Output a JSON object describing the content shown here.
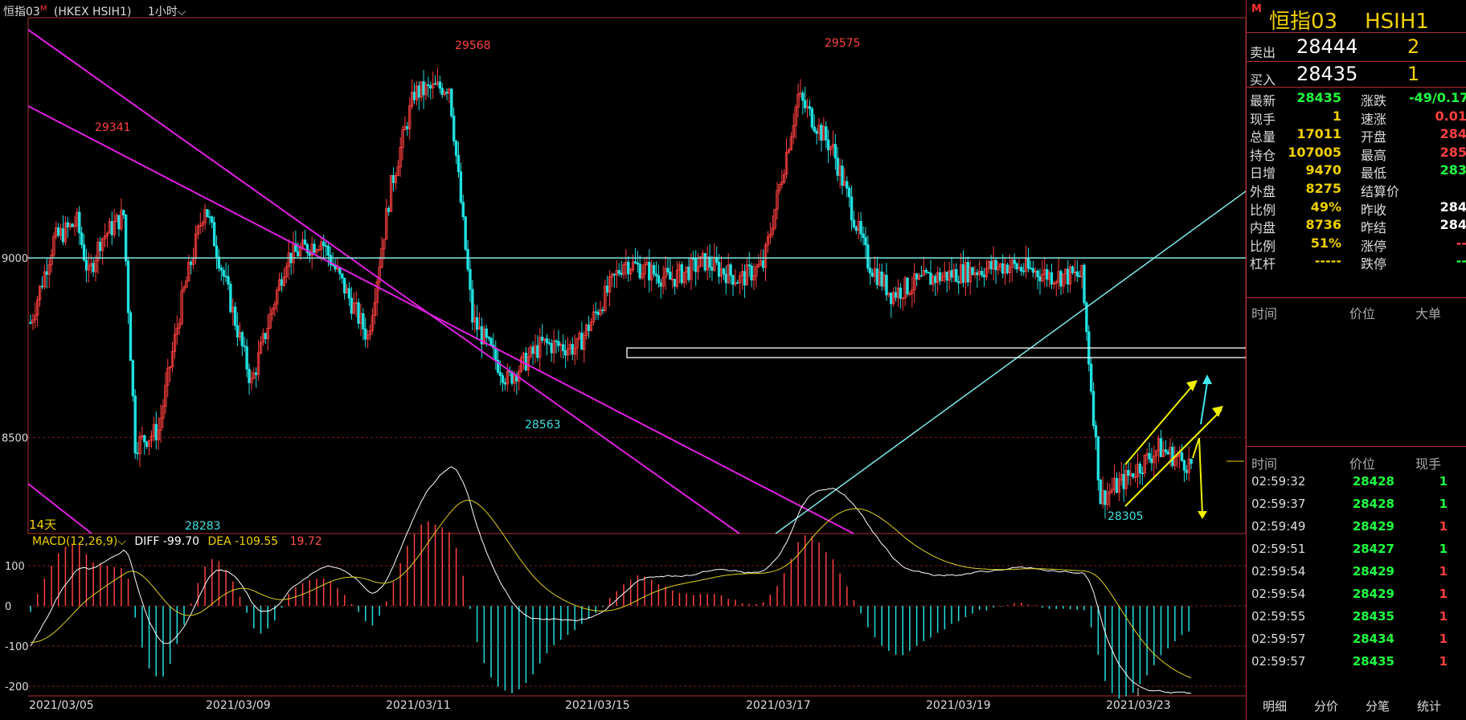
{
  "header": {
    "symbol": "恒指03",
    "badge": "M",
    "code": "(HKEX HSIH1)",
    "period": "1小时",
    "chevron_icon": "chevron-down-icon"
  },
  "main_chart": {
    "days_label": "14天",
    "price_axis_labels": [
      "9000",
      "8500"
    ],
    "date_labels": [
      "2021/03/05",
      "2021/03/09",
      "2021/03/11",
      "2021/03/15",
      "2021/03/17",
      "2021/03/19",
      "2021/03/23"
    ],
    "annotations": [
      {
        "text": "29341",
        "color": "#ff4040"
      },
      {
        "text": "29568",
        "color": "#ff4040"
      },
      {
        "text": "29575",
        "color": "#ff4040"
      },
      {
        "text": "28563",
        "color": "#40e0e0"
      },
      {
        "text": "28283",
        "color": "#40e0e0"
      },
      {
        "text": "28305",
        "color": "#40e0e0"
      }
    ]
  },
  "macd": {
    "label": "MACD(12,26,9)",
    "diff_label": "DIFF -99.70",
    "dea_label": "DEA -109.55",
    "macd_value": "19.72",
    "axis_labels": [
      "100",
      "0",
      "-100",
      "-200"
    ]
  },
  "chart_data": [
    {
      "type": "candlestick",
      "title": "",
      "ylabel": "",
      "ylim": [
        28230,
        29650
      ],
      "x_range": [
        "2021/03/05",
        "2021/03/24"
      ],
      "key_levels": {
        "support_resistance_horizontal": 29000
      },
      "highs": [
        {
          "label": "29341"
        },
        {
          "label": "29568"
        },
        {
          "label": "29575"
        }
      ],
      "lows": [
        {
          "label": "28283"
        },
        {
          "label": "28563"
        },
        {
          "label": "28305"
        }
      ],
      "colors": {
        "up": "#ff4040",
        "down": "#20e0e0",
        "trend": "#e020e0",
        "level": "#80e8e8",
        "channel": "#f0f000"
      }
    },
    {
      "type": "bar",
      "title": "MACD(12,26,9)",
      "ylim": [
        -210,
        140
      ],
      "series": [
        {
          "name": "DIFF",
          "last": -99.7,
          "color": "#ffffff"
        },
        {
          "name": "DEA",
          "last": -109.55,
          "color": "#e0d020"
        },
        {
          "name": "MACD",
          "last": 19.72,
          "color": "#ff4040"
        }
      ]
    }
  ],
  "panel": {
    "title_symbol": "恒指03",
    "title_code": "HSIH1",
    "badge": "M",
    "ask": {
      "label": "卖出",
      "price": "28444",
      "qty": "2"
    },
    "bid": {
      "label": "买入",
      "price": "28435",
      "qty": "1"
    },
    "stats_left": [
      {
        "k": "最新",
        "v": "28435",
        "c": "#20ff40"
      },
      {
        "k": "现手",
        "v": "1",
        "c": "#f0d000"
      },
      {
        "k": "总量",
        "v": "17011",
        "c": "#f0d000"
      },
      {
        "k": "持仓",
        "v": "107005",
        "c": "#f0d000"
      },
      {
        "k": "日增",
        "v": "9470",
        "c": "#f0d000"
      },
      {
        "k": "外盘",
        "v": "8275",
        "c": "#f0d000"
      },
      {
        "k": "比例",
        "v": "49%",
        "c": "#f0d000"
      },
      {
        "k": "内盘",
        "v": "8736",
        "c": "#f0d000"
      },
      {
        "k": "比例",
        "v": "51%",
        "c": "#f0d000"
      },
      {
        "k": "杠杆",
        "v": "-----",
        "c": "#f0d000"
      }
    ],
    "stats_right": [
      {
        "k": "涨跌",
        "v": "-49/0.17",
        "c": "#20ff40"
      },
      {
        "k": "速涨",
        "v": "0.01",
        "c": "#ff4040"
      },
      {
        "k": "开盘",
        "v": "284",
        "c": "#ff4040"
      },
      {
        "k": "最高",
        "v": "285",
        "c": "#ff4040"
      },
      {
        "k": "最低",
        "v": "283",
        "c": "#20ff40"
      },
      {
        "k": "结算价",
        "v": "",
        "c": "#ffffff"
      },
      {
        "k": "昨收",
        "v": "284",
        "c": "#ffffff"
      },
      {
        "k": "昨结",
        "v": "284",
        "c": "#ffffff"
      },
      {
        "k": "涨停",
        "v": "--",
        "c": "#ff4040"
      },
      {
        "k": "跌停",
        "v": "--",
        "c": "#20ff40"
      }
    ],
    "big_header": {
      "time": "时间",
      "price": "价位",
      "size": "大单"
    },
    "tick_header": {
      "time": "时间",
      "price": "价位",
      "size": "现手"
    },
    "ticks": [
      {
        "time": "02:59:32",
        "price": "28428",
        "qty": "1",
        "qc": "#20ff40"
      },
      {
        "time": "02:59:37",
        "price": "28428",
        "qty": "1",
        "qc": "#20ff40"
      },
      {
        "time": "02:59:49",
        "price": "28429",
        "qty": "1",
        "qc": "#ff4040"
      },
      {
        "time": "02:59:51",
        "price": "28427",
        "qty": "1",
        "qc": "#20ff40"
      },
      {
        "time": "02:59:54",
        "price": "28429",
        "qty": "1",
        "qc": "#ff4040"
      },
      {
        "time": "02:59:54",
        "price": "28429",
        "qty": "1",
        "qc": "#ff4040"
      },
      {
        "time": "02:59:55",
        "price": "28435",
        "qty": "1",
        "qc": "#ff4040"
      },
      {
        "time": "02:59:57",
        "price": "28434",
        "qty": "1",
        "qc": "#ff4040"
      },
      {
        "time": "02:59:57",
        "price": "28435",
        "qty": "1",
        "qc": "#ff4040"
      }
    ],
    "tabs": [
      "明细",
      "分价",
      "分笔",
      "统计"
    ]
  }
}
